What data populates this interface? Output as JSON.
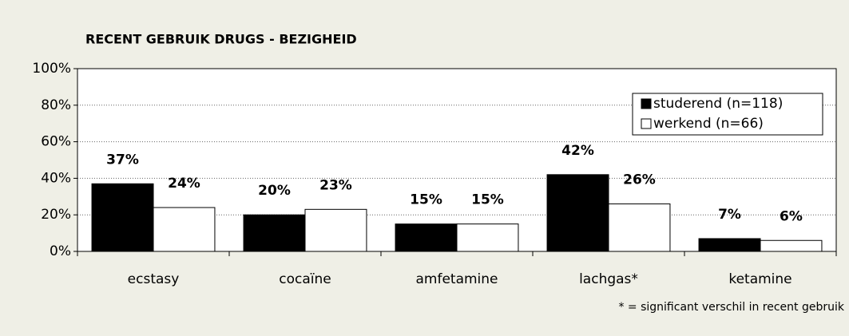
{
  "chart_data": {
    "type": "bar",
    "title": "RECENT GEBRUIK DRUGS - BEZIGHEID",
    "categories": [
      "ecstasy",
      "cocaïne",
      "amfetamine",
      "lachgas*",
      "ketamine"
    ],
    "series": [
      {
        "name": "studerend (n=118)",
        "color": "#000000",
        "values": [
          37,
          20,
          15,
          42,
          7
        ],
        "value_labels": [
          "37%",
          "20%",
          "15%",
          "42%",
          "7%"
        ]
      },
      {
        "name": "werkend (n=66)",
        "color": "#ffffff",
        "values": [
          24,
          23,
          15,
          26,
          6
        ],
        "value_labels": [
          "24%",
          "23%",
          "15%",
          "26%",
          "6%"
        ]
      }
    ],
    "ylim": [
      0,
      100
    ],
    "yticks": [
      {
        "value": 0,
        "label": "0%"
      },
      {
        "value": 20,
        "label": "20%"
      },
      {
        "value": 40,
        "label": "40%"
      },
      {
        "value": 60,
        "label": "60%"
      },
      {
        "value": 80,
        "label": "80%"
      },
      {
        "value": 100,
        "label": "100%"
      }
    ],
    "grid": true,
    "legend": "upper right",
    "annotation": "* = significant verschil in recent gebruik"
  }
}
